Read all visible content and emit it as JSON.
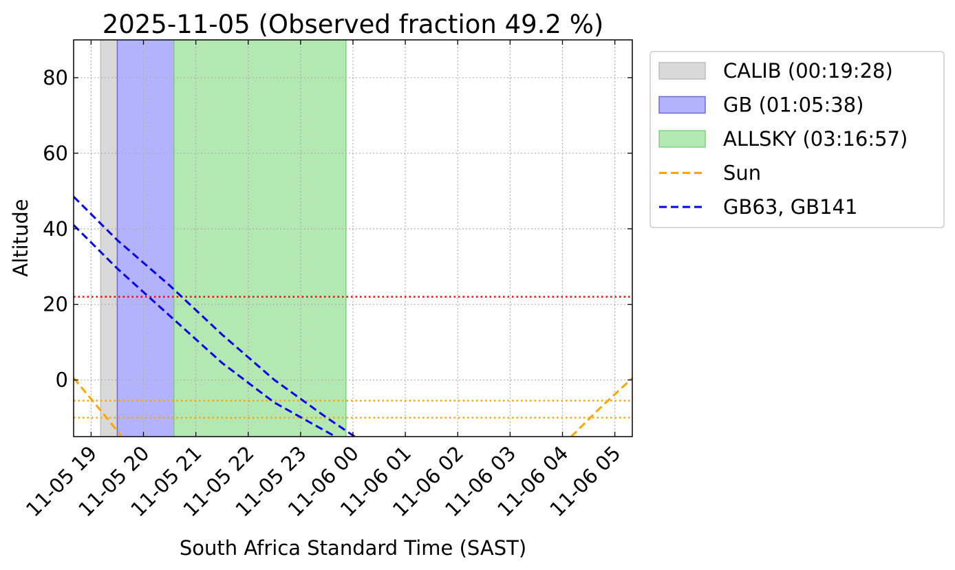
{
  "chart_data": {
    "type": "line",
    "title": "2025-11-05 (Observed fraction 49.2 %)",
    "xlabel": "South Africa Standard Time (SAST)",
    "ylabel": "Altitude",
    "xlim": [
      "2025-11-05 18:40",
      "2025-11-06 05:20"
    ],
    "ylim": [
      -15,
      90
    ],
    "grid": true,
    "x_ticks": [
      {
        "t": "2025-11-05 19:00",
        "label": "11-05 19"
      },
      {
        "t": "2025-11-05 20:00",
        "label": "11-05 20"
      },
      {
        "t": "2025-11-05 21:00",
        "label": "11-05 21"
      },
      {
        "t": "2025-11-05 22:00",
        "label": "11-05 22"
      },
      {
        "t": "2025-11-05 23:00",
        "label": "11-05 23"
      },
      {
        "t": "2025-11-06 00:00",
        "label": "11-06 00"
      },
      {
        "t": "2025-11-06 01:00",
        "label": "11-06 01"
      },
      {
        "t": "2025-11-06 02:00",
        "label": "11-06 02"
      },
      {
        "t": "2025-11-06 03:00",
        "label": "11-06 03"
      },
      {
        "t": "2025-11-06 04:00",
        "label": "11-06 04"
      },
      {
        "t": "2025-11-06 05:00",
        "label": "11-06 05"
      }
    ],
    "y_ticks": [
      0,
      20,
      40,
      60,
      80
    ],
    "spans": [
      {
        "name": "CALIB (00:19:28)",
        "start": "2025-11-05 19:11",
        "end": "2025-11-05 19:30",
        "color": "#d9d9d9",
        "edge": "#bdbdbd"
      },
      {
        "name": "GB (01:05:38)",
        "start": "2025-11-05 19:30",
        "end": "2025-11-05 20:35",
        "color": "#b2b2ff",
        "edge": "#6b6bdf"
      },
      {
        "name": "ALLSKY (03:16:57)",
        "start": "2025-11-05 20:35",
        "end": "2025-11-05 23:52",
        "color": "#b3e8b3",
        "edge": "#7ed37e"
      }
    ],
    "series": [
      {
        "name": "Sun",
        "color": "#ffa500",
        "style": "dashed",
        "segments": [
          [
            [
              "2025-11-05 18:40",
              0.5
            ],
            [
              "2025-11-05 19:15",
              -9.2
            ],
            [
              "2025-11-05 19:35",
              -15
            ]
          ],
          [
            [
              "2025-11-06 04:10",
              -15
            ],
            [
              "2025-11-06 04:45",
              -7
            ],
            [
              "2025-11-06 05:20",
              0.5
            ]
          ]
        ]
      },
      {
        "name": "GB63, GB141",
        "color": "#0000ee",
        "style": "dashed",
        "segments": [
          [
            [
              "2025-11-05 18:40",
              48.5
            ],
            [
              "2025-11-05 19:30",
              37
            ],
            [
              "2025-11-05 20:30",
              25
            ],
            [
              "2025-11-05 21:30",
              12
            ],
            [
              "2025-11-05 22:30",
              0
            ],
            [
              "2025-11-05 23:30",
              -10
            ],
            [
              "2025-11-06 00:02",
              -15
            ]
          ]
        ]
      },
      {
        "name": "",
        "color": "#0000ee",
        "style": "dashed",
        "segments": [
          [
            [
              "2025-11-05 18:40",
              41
            ],
            [
              "2025-11-05 19:30",
              29.5
            ],
            [
              "2025-11-05 20:30",
              17
            ],
            [
              "2025-11-05 21:30",
              4.5
            ],
            [
              "2025-11-05 22:30",
              -6
            ],
            [
              "2025-11-05 23:40",
              -15
            ]
          ]
        ]
      }
    ],
    "hlines": [
      {
        "y": 22,
        "color": "#ff0000",
        "style": "dotted"
      },
      {
        "y": -5.5,
        "color": "#ffa500",
        "style": "dotted"
      },
      {
        "y": -10,
        "color": "#ffa500",
        "style": "dotted"
      }
    ],
    "legend": {
      "placement": "outside-right",
      "entries": [
        {
          "label": "CALIB (00:19:28)",
          "kind": "patch",
          "color": "#d9d9d9",
          "edge": "#bdbdbd"
        },
        {
          "label": "GB (01:05:38)",
          "kind": "patch",
          "color": "#b2b2ff",
          "edge": "#6b6bdf"
        },
        {
          "label": "ALLSKY (03:16:57)",
          "kind": "patch",
          "color": "#b3e8b3",
          "edge": "#7ed37e"
        },
        {
          "label": "Sun",
          "kind": "line",
          "color": "#ffa500"
        },
        {
          "label": "GB63, GB141",
          "kind": "line",
          "color": "#0000ee"
        }
      ]
    }
  }
}
